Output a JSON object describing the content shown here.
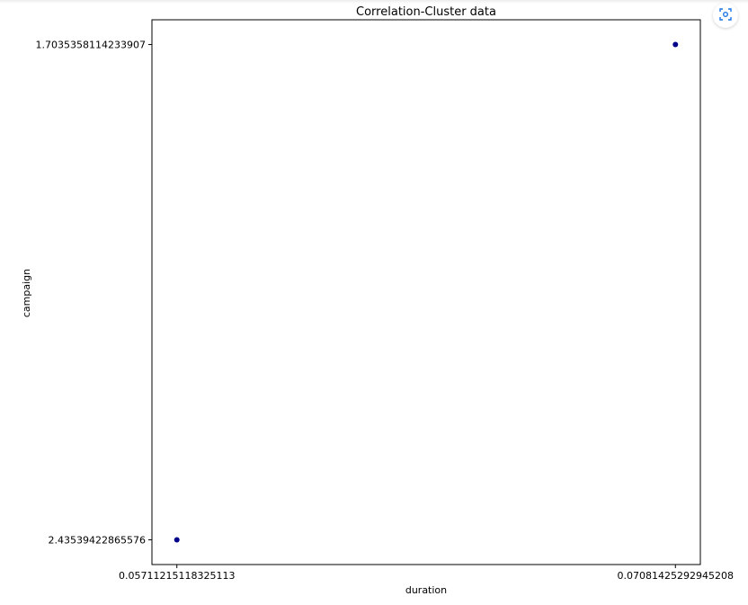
{
  "chart_data": {
    "type": "scatter",
    "title": "Correlation-Cluster data",
    "xlabel": "duration",
    "ylabel": "campaign",
    "x_axis": {
      "scale": "categorical",
      "ticks": [
        "0.05711215118325113",
        "0.07081425292945208"
      ]
    },
    "y_axis": {
      "scale": "categorical",
      "ticks": [
        "2.43539422865576",
        "1.7035358114233907"
      ]
    },
    "points": [
      {
        "x": "0.05711215118325113",
        "y": "2.43539422865576"
      },
      {
        "x": "0.07081425292945208",
        "y": "1.7035358114233907"
      }
    ],
    "marker_color": "#00008b",
    "grid": false,
    "legend": "none"
  },
  "toolbar": {
    "action_icon": "scan-icon",
    "accent_color": "#1a73e8"
  }
}
